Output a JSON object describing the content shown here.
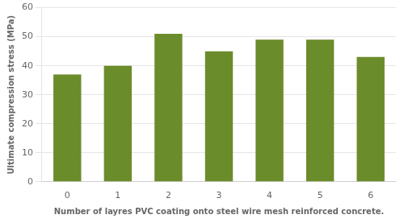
{
  "chart_data": {
    "type": "bar",
    "categories": [
      0,
      1,
      2,
      3,
      4,
      5,
      6
    ],
    "values": [
      37,
      40,
      51,
      45,
      49,
      49,
      43
    ],
    "color": "#6b8c2a",
    "xlabel": "Number of layres PVC coating onto steel wire mesh reinforced concrete.",
    "ylabel": "Ultimate compression stress (MPa)",
    "ylim": [
      0,
      60
    ],
    "yticks": [
      0,
      10,
      20,
      30,
      40,
      50,
      60
    ],
    "grid": true
  }
}
